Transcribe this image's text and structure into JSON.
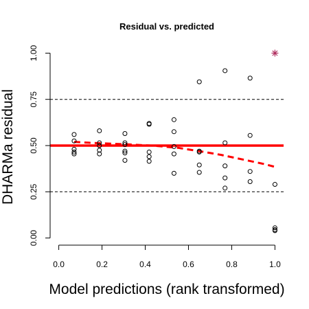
{
  "chart_data": {
    "type": "scatter",
    "title": "Residual vs. predicted",
    "xlabel": "Model predictions (rank transformed)",
    "ylabel": "DHARMa residual",
    "xlim": [
      -0.04,
      1.04
    ],
    "ylim": [
      -0.02,
      1.02
    ],
    "xticks": [
      0.0,
      0.2,
      0.4,
      0.6,
      0.8,
      1.0
    ],
    "xtick_labels": [
      "0.0",
      "0.2",
      "0.4",
      "0.6",
      "0.8",
      "1.0"
    ],
    "yticks": [
      0.0,
      0.25,
      0.5,
      0.75,
      1.0
    ],
    "ytick_labels": [
      "0.00",
      "0.25",
      "0.50",
      "0.75",
      "1.00"
    ],
    "reference_lines": [
      {
        "y": 0.25,
        "style": "dashed",
        "color": "#000000"
      },
      {
        "y": 0.5,
        "style": "solid",
        "color": "#ff0000"
      },
      {
        "y": 0.75,
        "style": "dashed",
        "color": "#000000"
      }
    ],
    "points": [
      {
        "x": 0.071,
        "y": 0.56
      },
      {
        "x": 0.071,
        "y": 0.525
      },
      {
        "x": 0.071,
        "y": 0.48
      },
      {
        "x": 0.071,
        "y": 0.465
      },
      {
        "x": 0.071,
        "y": 0.455
      },
      {
        "x": 0.188,
        "y": 0.58
      },
      {
        "x": 0.188,
        "y": 0.515
      },
      {
        "x": 0.188,
        "y": 0.5
      },
      {
        "x": 0.188,
        "y": 0.475
      },
      {
        "x": 0.188,
        "y": 0.455
      },
      {
        "x": 0.306,
        "y": 0.565
      },
      {
        "x": 0.306,
        "y": 0.515
      },
      {
        "x": 0.306,
        "y": 0.505
      },
      {
        "x": 0.306,
        "y": 0.47
      },
      {
        "x": 0.306,
        "y": 0.46
      },
      {
        "x": 0.306,
        "y": 0.42
      },
      {
        "x": 0.418,
        "y": 0.62
      },
      {
        "x": 0.418,
        "y": 0.615
      },
      {
        "x": 0.418,
        "y": 0.465
      },
      {
        "x": 0.418,
        "y": 0.44
      },
      {
        "x": 0.418,
        "y": 0.415
      },
      {
        "x": 0.533,
        "y": 0.64
      },
      {
        "x": 0.533,
        "y": 0.575
      },
      {
        "x": 0.533,
        "y": 0.495
      },
      {
        "x": 0.533,
        "y": 0.455
      },
      {
        "x": 0.533,
        "y": 0.35
      },
      {
        "x": 0.65,
        "y": 0.845
      },
      {
        "x": 0.65,
        "y": 0.47
      },
      {
        "x": 0.65,
        "y": 0.465
      },
      {
        "x": 0.65,
        "y": 0.395
      },
      {
        "x": 0.65,
        "y": 0.355
      },
      {
        "x": 0.769,
        "y": 0.905
      },
      {
        "x": 0.769,
        "y": 0.515
      },
      {
        "x": 0.769,
        "y": 0.39
      },
      {
        "x": 0.769,
        "y": 0.325
      },
      {
        "x": 0.769,
        "y": 0.27
      },
      {
        "x": 0.885,
        "y": 0.865
      },
      {
        "x": 0.885,
        "y": 0.555
      },
      {
        "x": 0.885,
        "y": 0.36
      },
      {
        "x": 0.885,
        "y": 0.305
      },
      {
        "x": 1.0,
        "y": 0.29
      },
      {
        "x": 1.0,
        "y": 0.055
      },
      {
        "x": 1.0,
        "y": 0.045
      },
      {
        "x": 1.0,
        "y": 0.04
      }
    ],
    "outliers": [
      {
        "x": 1.0,
        "y": 1.0,
        "marker": "asterisk",
        "color": "#b03060"
      }
    ],
    "smooth_line": {
      "color": "#ff0000",
      "style": "dashed",
      "x": [
        0.071,
        0.15,
        0.25,
        0.35,
        0.45,
        0.55,
        0.65,
        0.75,
        0.85,
        0.95,
        1.0
      ],
      "y": [
        0.52,
        0.515,
        0.51,
        0.505,
        0.498,
        0.488,
        0.47,
        0.45,
        0.425,
        0.4,
        0.385
      ]
    }
  }
}
